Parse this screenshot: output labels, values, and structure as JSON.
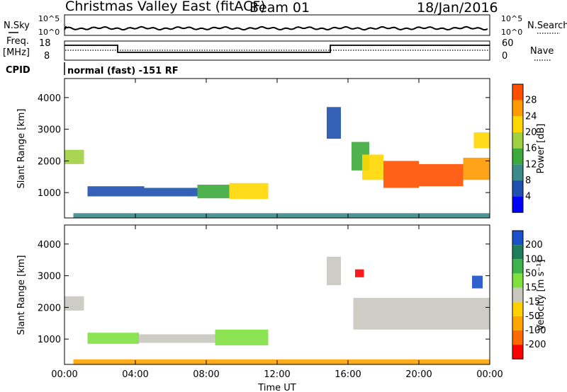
{
  "header": {
    "station": "Christmas Valley East (fitACF)",
    "beam": "Beam 01",
    "date": "18/Jan/2016"
  },
  "top_panels": {
    "nsky_label": "N.Sky",
    "nsearch_label": "N.Search",
    "noise_ticks": [
      "10^5",
      "10^0"
    ],
    "freq_label": "Freq.",
    "freq_unit": "[MHz]",
    "freq_ticks": [
      "18",
      "8"
    ],
    "nave_label": "Nave",
    "nave_ticks": [
      "60",
      "0"
    ],
    "cpid_label": "CPID",
    "cpid_text": "normal (fast) -151 RF"
  },
  "colors": {
    "grey": "#c8c8c0",
    "power_scale": [
      "#0000ff",
      "#2050b0",
      "#3c8a8a",
      "#3caa3c",
      "#a0d040",
      "#ffd700",
      "#ff9a00",
      "#ff5000",
      "#ff0000"
    ],
    "velocity_scale": [
      "#ff0000",
      "#ff6a00",
      "#ffa500",
      "#ffd000",
      "#c8c8c0",
      "#80e040",
      "#3cb44b",
      "#1e7d5a",
      "#1a50c8",
      "#0000d0"
    ]
  },
  "chart_data": [
    {
      "type": "heatmap",
      "name": "power-panel",
      "xlabel": "",
      "ylabel": "Slant Range [km]",
      "xlim": [
        0,
        24
      ],
      "ylim": [
        200,
        4600
      ],
      "xticks": [
        "00:00",
        "04:00",
        "08:00",
        "12:00",
        "16:00",
        "20:00",
        "00:00"
      ],
      "yticks": [
        1000,
        2000,
        3000,
        4000
      ],
      "colorbar": {
        "label": "Power [dB]",
        "ticks": [
          4,
          8,
          12,
          16,
          20,
          24,
          28
        ]
      },
      "regions": [
        {
          "t0": 0.0,
          "t1": 1.1,
          "r0": 1900,
          "r1": 2350,
          "level": 4
        },
        {
          "t0": 1.3,
          "t1": 4.5,
          "r0": 880,
          "r1": 1200,
          "level": 1
        },
        {
          "t0": 4.5,
          "t1": 7.5,
          "r0": 880,
          "r1": 1150,
          "level": 1
        },
        {
          "t0": 7.5,
          "t1": 9.3,
          "r0": 820,
          "r1": 1250,
          "level": 3
        },
        {
          "t0": 9.3,
          "t1": 11.5,
          "r0": 800,
          "r1": 1300,
          "level": 5
        },
        {
          "t0": 14.8,
          "t1": 15.6,
          "r0": 2700,
          "r1": 3700,
          "level": 1
        },
        {
          "t0": 16.2,
          "t1": 17.2,
          "r0": 1700,
          "r1": 2600,
          "level": 3
        },
        {
          "t0": 16.8,
          "t1": 18.0,
          "r0": 1400,
          "r1": 2200,
          "level": 5
        },
        {
          "t0": 18.0,
          "t1": 20.0,
          "r0": 1150,
          "r1": 2000,
          "level": 7
        },
        {
          "t0": 20.0,
          "t1": 22.5,
          "r0": 1200,
          "r1": 1900,
          "level": 7
        },
        {
          "t0": 22.5,
          "t1": 24.0,
          "r0": 1400,
          "r1": 2100,
          "level": 6
        },
        {
          "t0": 23.1,
          "t1": 24.0,
          "r0": 2400,
          "r1": 2900,
          "level": 5
        },
        {
          "t0": 0.5,
          "t1": 24.0,
          "r0": 200,
          "r1": 350,
          "level": 2
        }
      ]
    },
    {
      "type": "heatmap",
      "name": "velocity-panel",
      "xlabel": "Time UT",
      "ylabel": "Slant Range [km]",
      "xlim": [
        0,
        24
      ],
      "ylim": [
        200,
        4600
      ],
      "xticks": [
        "00:00",
        "04:00",
        "08:00",
        "12:00",
        "16:00",
        "20:00",
        "00:00"
      ],
      "yticks": [
        1000,
        2000,
        3000,
        4000
      ],
      "colorbar": {
        "label": "Velocity [m s⁻¹]",
        "ticks": [
          -200,
          -100,
          -50,
          -15,
          15,
          50,
          100,
          200
        ]
      },
      "regions": [
        {
          "t0": 0.0,
          "t1": 1.1,
          "r0": 1900,
          "r1": 2350,
          "color": "grey"
        },
        {
          "t0": 1.3,
          "t1": 4.2,
          "r0": 850,
          "r1": 1200,
          "color": "green"
        },
        {
          "t0": 4.2,
          "t1": 8.5,
          "r0": 880,
          "r1": 1150,
          "color": "grey"
        },
        {
          "t0": 8.5,
          "t1": 11.5,
          "r0": 800,
          "r1": 1300,
          "color": "green"
        },
        {
          "t0": 14.8,
          "t1": 15.6,
          "r0": 2700,
          "r1": 3600,
          "color": "grey"
        },
        {
          "t0": 16.3,
          "t1": 24.0,
          "r0": 1300,
          "r1": 2300,
          "color": "grey"
        },
        {
          "t0": 16.4,
          "t1": 16.9,
          "r0": 2950,
          "r1": 3200,
          "color": "red"
        },
        {
          "t0": 23.0,
          "t1": 23.6,
          "r0": 2600,
          "r1": 3000,
          "color": "blue"
        },
        {
          "t0": 0.5,
          "t1": 24.0,
          "r0": 200,
          "r1": 360,
          "color": "orange"
        }
      ]
    }
  ]
}
